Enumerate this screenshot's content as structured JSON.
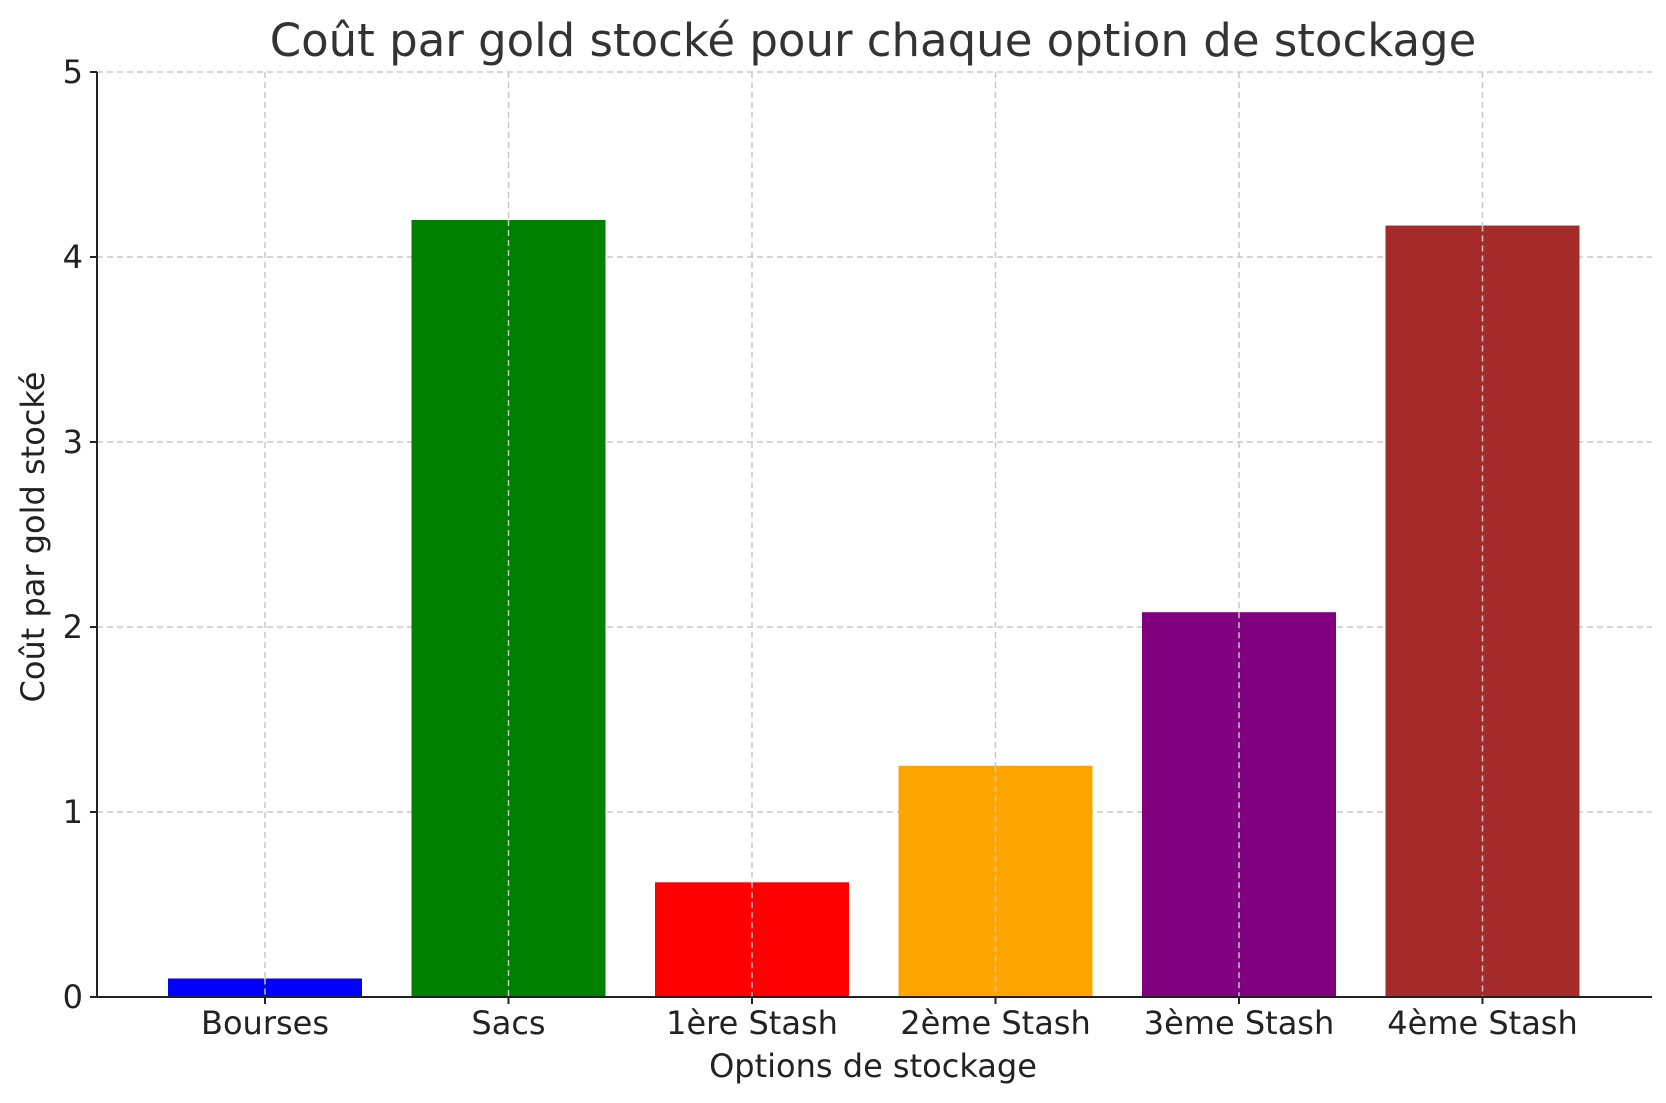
{
  "chart_data": {
    "type": "bar",
    "title": "Coût par gold stocké pour chaque option de stockage",
    "xlabel": "Options de stockage",
    "ylabel": "Coût par gold stocké",
    "categories": [
      "Bourses",
      "Sacs",
      "1ère Stash",
      "2ème Stash",
      "3ème Stash",
      "4ème Stash"
    ],
    "values": [
      0.1,
      4.2,
      0.62,
      1.25,
      2.08,
      4.17
    ],
    "colors": [
      "#0000ff",
      "#008000",
      "#ff0000",
      "#ffa500",
      "#800080",
      "#a52a2a"
    ],
    "ylim": [
      0,
      5
    ],
    "yticks": [
      0,
      1,
      2,
      3,
      4,
      5
    ],
    "grid": true
  }
}
